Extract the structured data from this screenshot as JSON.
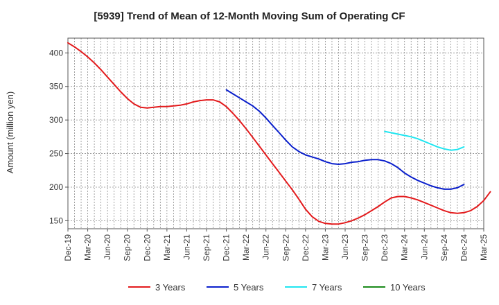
{
  "chart_data": {
    "type": "line",
    "title": "[5939]  Trend of Mean of 12-Month Moving Sum of Operating CF",
    "xlabel": "",
    "ylabel": "Amount (million yen)",
    "ylim": [
      138,
      422
    ],
    "yticks": [
      150,
      200,
      250,
      300,
      350,
      400
    ],
    "x_tick_labels": [
      "Dec-19",
      "Mar-20",
      "Jun-20",
      "Sep-20",
      "Dec-20",
      "Mar-21",
      "Jun-21",
      "Sep-21",
      "Dec-21",
      "Mar-22",
      "Jun-22",
      "Sep-22",
      "Dec-22",
      "Mar-23",
      "Jun-23",
      "Sep-23",
      "Dec-23",
      "Mar-24",
      "Jun-24",
      "Sep-24",
      "Dec-24",
      "Mar-25"
    ],
    "grid": true,
    "legend_position": "bottom",
    "series": [
      {
        "name": "3 Years",
        "color": "#e31a1c",
        "start_index": 0,
        "values": [
          415,
          409,
          402,
          394,
          385,
          375,
          364,
          353,
          342,
          332,
          324,
          319,
          318,
          319,
          320,
          320,
          321,
          322,
          324,
          327,
          329,
          330,
          330,
          327,
          320,
          310,
          299,
          287,
          274,
          261,
          248,
          235,
          222,
          209,
          196,
          182,
          167,
          156,
          149,
          146,
          145,
          145,
          147,
          150,
          154,
          159,
          165,
          171,
          178,
          184,
          186,
          186,
          184,
          181,
          177,
          173,
          169,
          165,
          162,
          161,
          162,
          165,
          171,
          180,
          193
        ]
      },
      {
        "name": "5 Years",
        "color": "#0a1fcc",
        "start_index": 24,
        "values": [
          345,
          339,
          333,
          327,
          321,
          313,
          303,
          292,
          281,
          270,
          260,
          253,
          248,
          245,
          242,
          238,
          235,
          234,
          235,
          237,
          238,
          240,
          241,
          241,
          239,
          235,
          229,
          221,
          215,
          210,
          206,
          202,
          199,
          197,
          197,
          199,
          204
        ]
      },
      {
        "name": "7 Years",
        "color": "#1fe5f0",
        "start_index": 48,
        "values": [
          283,
          281,
          279,
          277,
          275,
          272,
          268,
          264,
          260,
          257,
          255,
          256,
          260
        ]
      },
      {
        "name": "10 Years",
        "color": "#1a8a1a",
        "start_index": 0,
        "values": []
      }
    ]
  }
}
